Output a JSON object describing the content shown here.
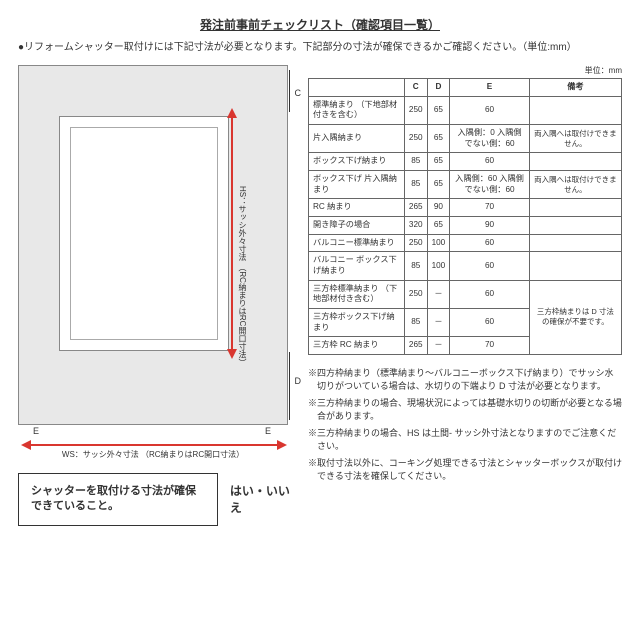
{
  "title": "発注前事前チェックリスト（確認項目一覧）",
  "intro": "●リフォームシャッター取付けには下記寸法が必要となります。下記部分の寸法が確保できるかご確認ください。（単位:mm）",
  "unit_label": "単位：mm",
  "diagram": {
    "axis_v": "HS：サッシ外々寸法\n（RC納まりはRC開口寸法）",
    "axis_h": "WS：サッシ外々寸法\n（RC納まりはRC開口寸法）",
    "label_c": "C",
    "label_d": "D",
    "label_e_l": "E",
    "label_e_r": "E"
  },
  "table": {
    "headers": [
      "",
      "C",
      "D",
      "E",
      "備考"
    ],
    "rows": [
      {
        "label": "標準納まり\n（下地部材付きを含む）",
        "c": "250",
        "d": "65",
        "e": "60",
        "remark": ""
      },
      {
        "label": "片入隅納まり",
        "c": "250",
        "d": "65",
        "e": "入隅側：0\n入隅側でない側：60",
        "remark": "両入隅へは取付けできません。"
      },
      {
        "label": "ボックス下げ納まり",
        "c": "85",
        "d": "65",
        "e": "60",
        "remark": ""
      },
      {
        "label": "ボックス下げ\n片入隅納まり",
        "c": "85",
        "d": "65",
        "e": "入隅側：60\n入隅側でない側：60",
        "remark": "両入隅へは取付けできません。"
      },
      {
        "label": "RC 納まり",
        "c": "265",
        "d": "90",
        "e": "70",
        "remark": ""
      },
      {
        "label": "開き障子の場合",
        "c": "320",
        "d": "65",
        "e": "90",
        "remark": ""
      },
      {
        "label": "バルコニー標準納まり",
        "c": "250",
        "d": "100",
        "e": "60",
        "remark": ""
      },
      {
        "label": "バルコニー\nボックス下げ納まり",
        "c": "85",
        "d": "100",
        "e": "60",
        "remark": ""
      },
      {
        "label": "三方枠標準納まり\n（下地部材付き含む）",
        "c": "250",
        "d": "－",
        "e": "60",
        "remark": "三方枠納まりは D 寸法の確保が不要です。"
      },
      {
        "label": "三方枠ボックス下げ納まり",
        "c": "85",
        "d": "－",
        "e": "60",
        "remark": ""
      },
      {
        "label": "三方枠 RC 納まり",
        "c": "265",
        "d": "－",
        "e": "70",
        "remark": ""
      }
    ]
  },
  "notes": [
    "※四方枠納まり（標準納まり～バルコニーボックス下げ納まり）でサッシ水切りがついている場合は、水切りの下端より D 寸法が必要となります。",
    "※三方枠納まりの場合、現場状況によっては基礎水切りの切断が必要となる場合があります。",
    "※三方枠納まりの場合、HS は土間- サッシ外寸法となりますのでご注意ください。",
    "※取付寸法以外に、コーキング処理できる寸法とシャッターボックスが取付けできる寸法を確保してください。"
  ],
  "check_label": "シャッターを取付ける寸法が確保できていること。",
  "yesno": "はい・いいえ"
}
